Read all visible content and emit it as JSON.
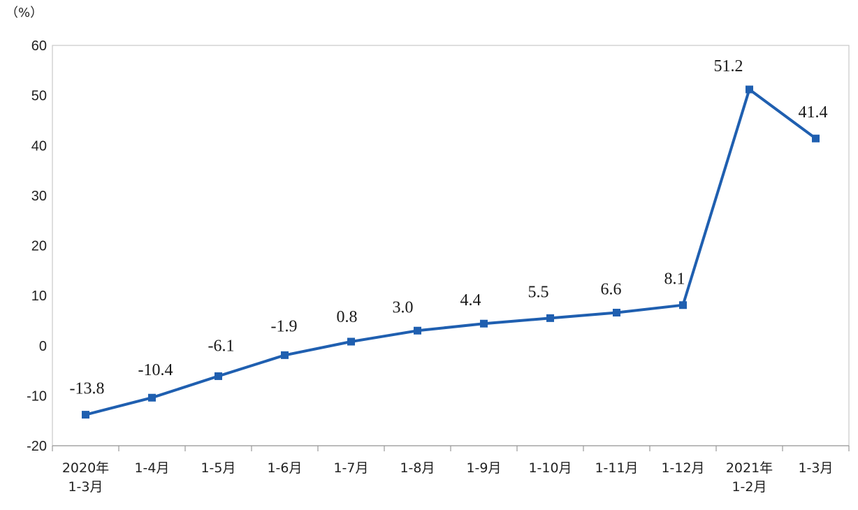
{
  "chart_data": {
    "type": "line",
    "unit_label": "（%）",
    "categories": [
      [
        "2020年",
        "1-3月"
      ],
      [
        "1-4月"
      ],
      [
        "1-5月"
      ],
      [
        "1-6月"
      ],
      [
        "1-7月"
      ],
      [
        "1-8月"
      ],
      [
        "1-9月"
      ],
      [
        "1-10月"
      ],
      [
        "1-11月"
      ],
      [
        "1-12月"
      ],
      [
        "2021年",
        "1-2月"
      ],
      [
        "1-3月"
      ]
    ],
    "series": [
      {
        "values": [
          -13.8,
          -10.4,
          -6.1,
          -1.9,
          0.8,
          3.0,
          4.4,
          5.5,
          6.6,
          8.1,
          51.2,
          41.4
        ],
        "data_labels": [
          "-13.8",
          "-10.4",
          "-6.1",
          "-1.9",
          "0.8",
          "3.0",
          "4.4",
          "5.5",
          "6.6",
          "8.1",
          "51.2",
          "41.4"
        ],
        "color": "#1f5fb0",
        "marker": "square"
      }
    ],
    "y_ticks": [
      "60",
      "50",
      "40",
      "30",
      "20",
      "10",
      "0",
      "-10",
      "-20"
    ],
    "ylim": [
      -20,
      60
    ],
    "grid": false,
    "legend": "none"
  }
}
